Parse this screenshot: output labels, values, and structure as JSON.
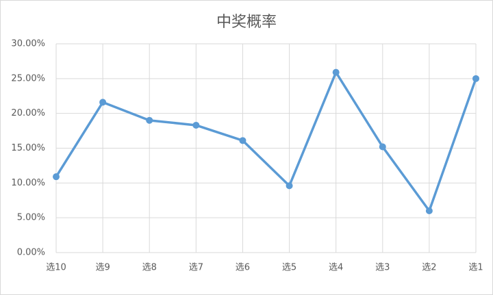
{
  "chart_data": {
    "type": "line",
    "title": "中奖概率",
    "categories": [
      "选10",
      "选9",
      "选8",
      "选7",
      "选6",
      "选5",
      "选4",
      "选3",
      "选2",
      "选1"
    ],
    "values": [
      10.9,
      21.6,
      19.0,
      18.3,
      16.1,
      9.6,
      25.9,
      15.2,
      6.0,
      25.0
    ],
    "color": "#5b9bd5",
    "ylim": [
      0,
      30
    ],
    "yticks": [
      {
        "value": 0,
        "label": "0.00%"
      },
      {
        "value": 5,
        "label": "5.00%"
      },
      {
        "value": 10,
        "label": "10.00%"
      },
      {
        "value": 15,
        "label": "15.00%"
      },
      {
        "value": 20,
        "label": "20.00%"
      },
      {
        "value": 25,
        "label": "25.00%"
      },
      {
        "value": 30,
        "label": "30.00%"
      }
    ],
    "grid": true
  }
}
